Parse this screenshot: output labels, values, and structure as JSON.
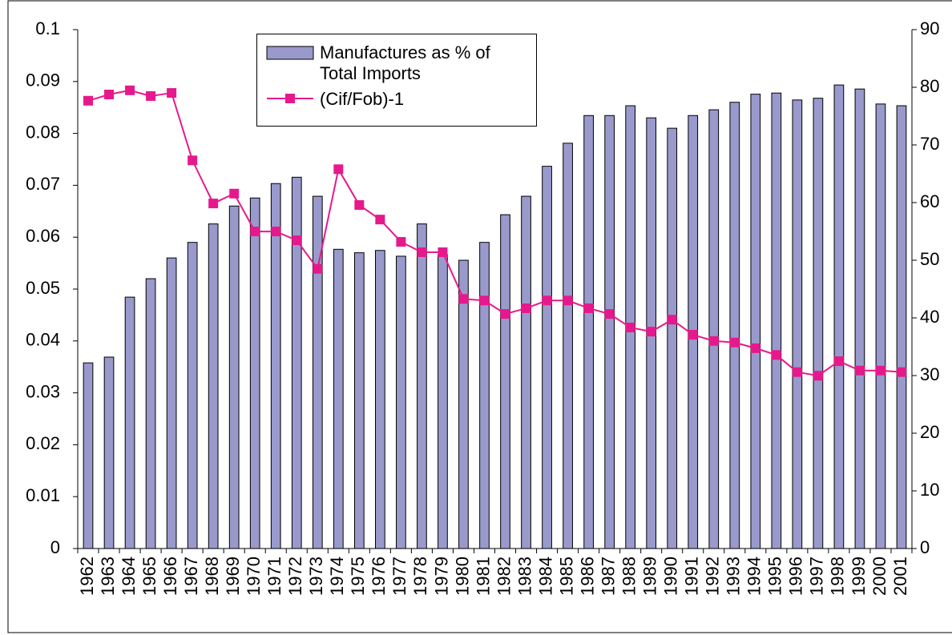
{
  "chart_data": {
    "type": "bar-line",
    "categories": [
      "1962",
      "1963",
      "1964",
      "1965",
      "1966",
      "1967",
      "1968",
      "1969",
      "1970",
      "1971",
      "1972",
      "1973",
      "1974",
      "1975",
      "1976",
      "1977",
      "1978",
      "1979",
      "1980",
      "1981",
      "1982",
      "1983",
      "1984",
      "1985",
      "1986",
      "1987",
      "1988",
      "1989",
      "1990",
      "1991",
      "1992",
      "1993",
      "1994",
      "1995",
      "1996",
      "1997",
      "1998",
      "1999",
      "2000",
      "2001"
    ],
    "series": [
      {
        "name": "Manufactures as % of Total Imports",
        "type": "bar",
        "axis": "y2",
        "color": "#9999cc",
        "values": [
          32.2,
          33.2,
          43.6,
          46.8,
          50.4,
          53.1,
          56.3,
          59.4,
          60.8,
          63.3,
          64.4,
          61.1,
          51.9,
          51.3,
          51.7,
          50.7,
          56.3,
          51.0,
          50.0,
          53.1,
          57.9,
          61.1,
          66.3,
          70.3,
          75.1,
          75.1,
          76.8,
          74.7,
          72.9,
          75.1,
          76.1,
          77.4,
          78.8,
          79.0,
          77.8,
          78.1,
          80.4,
          79.7,
          77.1,
          76.8
        ]
      },
      {
        "name": "(Cif/Fob)-1",
        "type": "line",
        "color": "#e6198c",
        "values": [
          0.0863,
          0.0875,
          0.0883,
          0.0872,
          0.0878,
          0.0748,
          0.0665,
          0.0684,
          0.0611,
          0.0611,
          0.0594,
          0.0539,
          0.0731,
          0.0662,
          0.0634,
          0.0591,
          0.0571,
          0.0571,
          0.0481,
          0.0478,
          0.0452,
          0.0463,
          0.0478,
          0.0478,
          0.0463,
          0.0452,
          0.0426,
          0.0418,
          0.0441,
          0.0412,
          0.04,
          0.0397,
          0.0386,
          0.0373,
          0.034,
          0.0333,
          0.0361,
          0.0343,
          0.0343,
          0.034
        ]
      }
    ],
    "ylim": [
      0,
      0.1
    ],
    "yticks": [
      0,
      0.01,
      0.02,
      0.03,
      0.04,
      0.05,
      0.06,
      0.07,
      0.08,
      0.09,
      0.1
    ],
    "y2lim": [
      0,
      90
    ],
    "y2ticks": [
      0,
      10,
      20,
      30,
      40,
      50,
      60,
      70,
      80,
      90
    ]
  }
}
